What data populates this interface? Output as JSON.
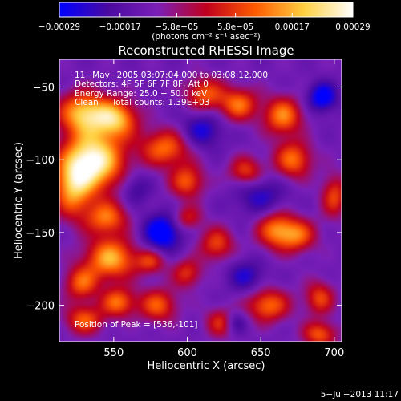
{
  "chart_data": {
    "type": "heatmap",
    "title": "Reconstructed RHESSI Image",
    "xlabel": "Heliocentric X (arcsec)",
    "ylabel": "Heliocentric Y (arcsec)",
    "xlim": [
      513,
      705
    ],
    "ylim": [
      -225,
      -31
    ],
    "x_ticks": [
      550,
      600,
      650,
      700
    ],
    "x_tick_labels": [
      "550",
      "600",
      "650",
      "700"
    ],
    "y_ticks": [
      -50,
      -100,
      -150,
      -200
    ],
    "y_tick_labels": [
      "−50",
      "−100",
      "−150",
      "−200"
    ],
    "colorbar": {
      "range": [
        -0.00029,
        0.00029
      ],
      "ticks": [
        -0.00029,
        -0.00017,
        -5.8e-05,
        5.8e-05,
        0.00017,
        0.00029
      ],
      "tick_labels": [
        "−0.00029",
        "−0.00017",
        "−5.8e−05",
        "5.8e−05",
        "0.00017",
        "0.00029"
      ],
      "label": "(photons cm⁻² s⁻¹ asec⁻²)",
      "colors": [
        "#0000ff",
        "#4a0aa0",
        "#7a1fb8",
        "#c0001e",
        "#ff5a00",
        "#ffd040",
        "#ffffff"
      ]
    },
    "annotations": [
      "11−May−2005 03:07:04.000 to 03:08:12.000",
      "Detectors: 4F 5F 6F 7F 8F, Att 0",
      "Energy Range: 25.0 − 50.0 keV",
      "Clean     Total counts: 1.39E+03"
    ],
    "peak_label": "Position of Peak = [536,-101]",
    "peak": [
      536,
      -101
    ],
    "sources": [
      {
        "x": 536,
        "y": -101,
        "sx": 14,
        "sy": 14,
        "a": 1.0
      },
      {
        "x": 530,
        "y": -68,
        "sx": 12,
        "sy": 10,
        "a": 0.75
      },
      {
        "x": 552,
        "y": -72,
        "sx": 10,
        "sy": 9,
        "a": 0.65
      },
      {
        "x": 522,
        "y": -120,
        "sx": 9,
        "sy": 14,
        "a": 0.6
      },
      {
        "x": 545,
        "y": -140,
        "sx": 10,
        "sy": 8,
        "a": 0.55
      },
      {
        "x": 548,
        "y": -168,
        "sx": 12,
        "sy": 10,
        "a": 0.7
      },
      {
        "x": 528,
        "y": -185,
        "sx": 8,
        "sy": 8,
        "a": 0.5
      },
      {
        "x": 553,
        "y": -198,
        "sx": 8,
        "sy": 7,
        "a": 0.55
      },
      {
        "x": 530,
        "y": -210,
        "sx": 9,
        "sy": 7,
        "a": 0.5
      },
      {
        "x": 585,
        "y": -92,
        "sx": 12,
        "sy": 9,
        "a": 0.55
      },
      {
        "x": 600,
        "y": -115,
        "sx": 8,
        "sy": 8,
        "a": 0.5
      },
      {
        "x": 612,
        "y": -55,
        "sx": 9,
        "sy": 8,
        "a": 0.5
      },
      {
        "x": 635,
        "y": -62,
        "sx": 9,
        "sy": 8,
        "a": 0.55
      },
      {
        "x": 665,
        "y": -70,
        "sx": 9,
        "sy": 9,
        "a": 0.6
      },
      {
        "x": 672,
        "y": -100,
        "sx": 9,
        "sy": 9,
        "a": 0.55
      },
      {
        "x": 640,
        "y": -108,
        "sx": 8,
        "sy": 7,
        "a": 0.45
      },
      {
        "x": 660,
        "y": -148,
        "sx": 9,
        "sy": 9,
        "a": 0.55
      },
      {
        "x": 675,
        "y": -152,
        "sx": 9,
        "sy": 8,
        "a": 0.5
      },
      {
        "x": 620,
        "y": -158,
        "sx": 8,
        "sy": 8,
        "a": 0.45
      },
      {
        "x": 575,
        "y": -170,
        "sx": 7,
        "sy": 6,
        "a": 0.4
      },
      {
        "x": 580,
        "y": -200,
        "sx": 9,
        "sy": 8,
        "a": 0.5
      },
      {
        "x": 600,
        "y": -178,
        "sx": 7,
        "sy": 7,
        "a": 0.4
      },
      {
        "x": 625,
        "y": -212,
        "sx": 8,
        "sy": 7,
        "a": 0.5
      },
      {
        "x": 655,
        "y": -200,
        "sx": 10,
        "sy": 8,
        "a": 0.55
      },
      {
        "x": 690,
        "y": -195,
        "sx": 7,
        "sy": 8,
        "a": 0.45
      },
      {
        "x": 690,
        "y": -220,
        "sx": 8,
        "sy": 6,
        "a": 0.5
      },
      {
        "x": 700,
        "y": -125,
        "sx": 6,
        "sy": 10,
        "a": 0.45
      },
      {
        "x": 600,
        "y": -140,
        "sx": 7,
        "sy": 6,
        "a": 0.35
      },
      {
        "x": 583,
        "y": -150,
        "sx": 9,
        "sy": 9,
        "a": -0.55
      },
      {
        "x": 692,
        "y": -57,
        "sx": 7,
        "sy": 7,
        "a": -0.5
      },
      {
        "x": 632,
        "y": -212,
        "sx": 6,
        "sy": 6,
        "a": -0.45
      },
      {
        "x": 610,
        "y": -80,
        "sx": 10,
        "sy": 9,
        "a": -0.35
      },
      {
        "x": 650,
        "y": -125,
        "sx": 12,
        "sy": 10,
        "a": -0.3
      },
      {
        "x": 565,
        "y": -120,
        "sx": 7,
        "sy": 8,
        "a": -0.25
      },
      {
        "x": 640,
        "y": -180,
        "sx": 9,
        "sy": 8,
        "a": -0.3
      }
    ]
  },
  "footer": {
    "timestamp": "5−Jul−2013 11:17"
  }
}
